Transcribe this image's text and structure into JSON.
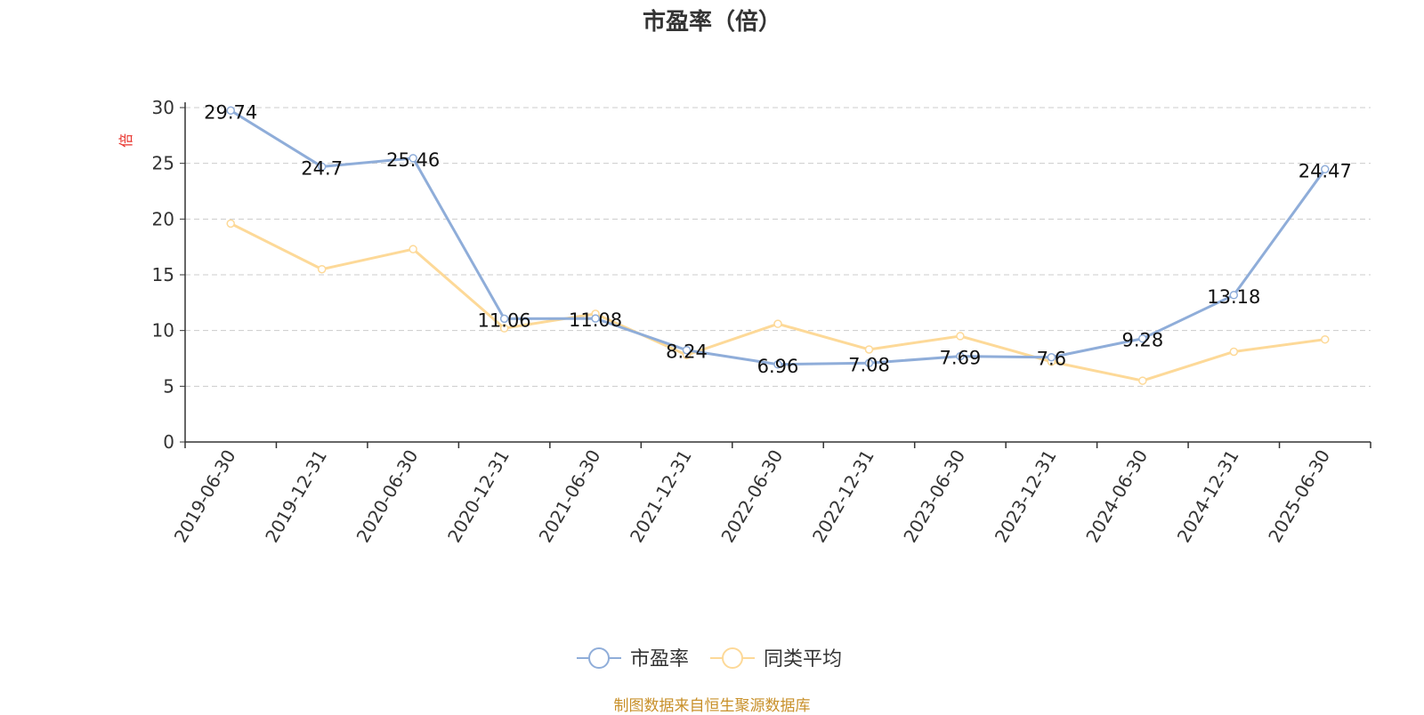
{
  "chart_data": {
    "type": "line",
    "title": "市盈率（倍）",
    "ylabel": "倍",
    "xlabel": "",
    "ylim": [
      0,
      30
    ],
    "yticks": [
      0,
      5,
      10,
      15,
      20,
      25,
      30
    ],
    "grid": true,
    "legend_position": "bottom-center",
    "categories": [
      "2019-06-30",
      "2019-12-31",
      "2020-06-30",
      "2020-12-31",
      "2021-06-30",
      "2021-12-31",
      "2022-06-30",
      "2022-12-31",
      "2023-06-30",
      "2023-12-31",
      "2024-06-30",
      "2024-12-31",
      "2025-06-30"
    ],
    "series": [
      {
        "name": "市盈率",
        "color": "#8fadd9",
        "show_labels": true,
        "values": [
          29.74,
          24.7,
          25.46,
          11.06,
          11.08,
          8.24,
          6.96,
          7.08,
          7.69,
          7.6,
          9.28,
          13.18,
          24.47
        ]
      },
      {
        "name": "同类平均",
        "color": "#fdd998",
        "show_labels": false,
        "values": [
          19.6,
          15.5,
          17.3,
          10.2,
          11.5,
          7.8,
          10.6,
          8.3,
          9.5,
          7.2,
          5.5,
          8.1,
          9.2
        ]
      }
    ]
  },
  "source_note": "制图数据来自恒生聚源数据库",
  "colors": {
    "axis": "#333333",
    "grid": "#cccccc",
    "ylabel": "#e8312a"
  }
}
